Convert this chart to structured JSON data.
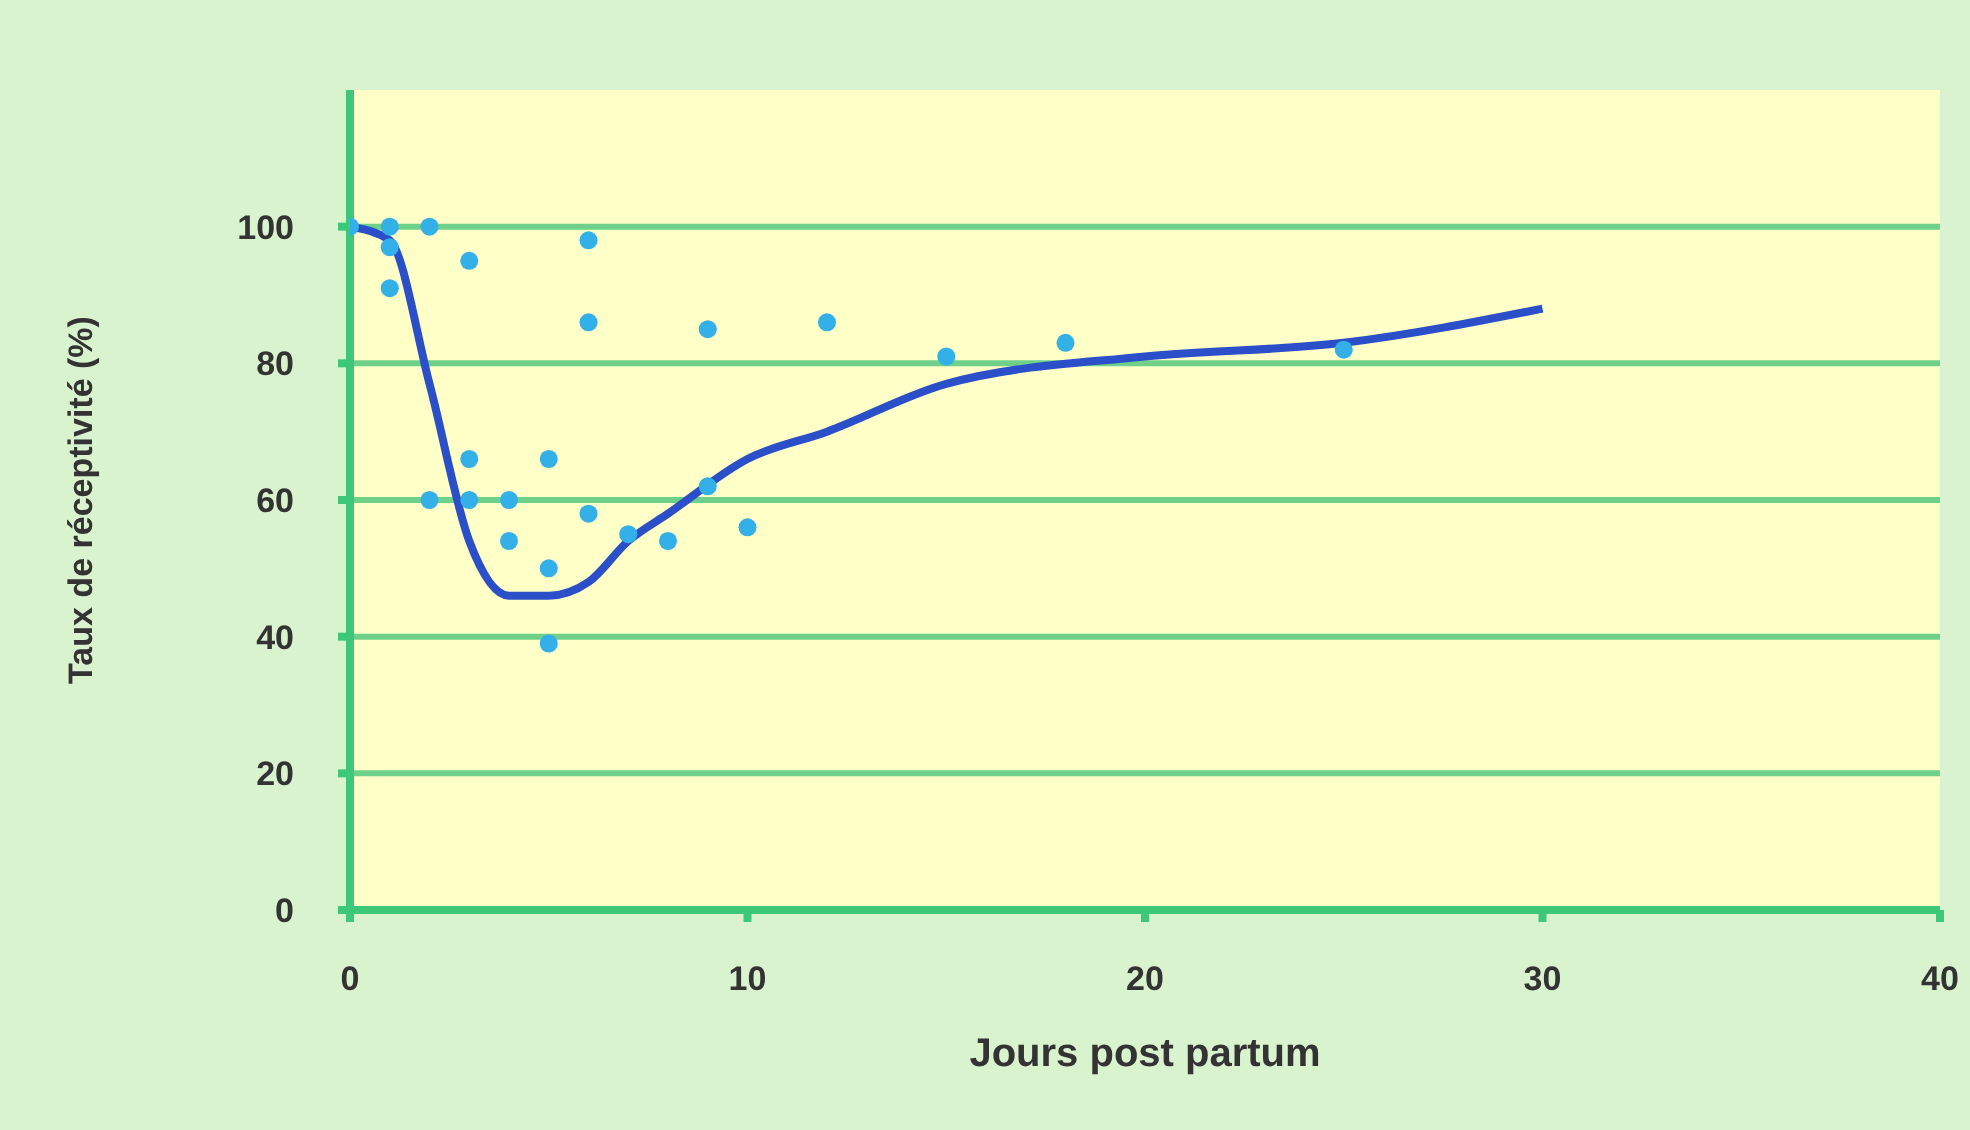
{
  "chart_data": {
    "type": "line",
    "xlabel": "Jours post partum",
    "ylabel": "Taux de réceptivité (%)",
    "xlim": [
      0,
      40
    ],
    "xticks": [
      0,
      10,
      20,
      30,
      40
    ],
    "ylim": [
      0,
      120
    ],
    "yticks": [
      0,
      20,
      40,
      60,
      80,
      100
    ],
    "grid": "y",
    "series": [
      {
        "type": "scatter",
        "color": "#33b0e8",
        "marker": "circle",
        "x": [
          0,
          1,
          1,
          1,
          2,
          3,
          6,
          6,
          9,
          12,
          3,
          5,
          2,
          3,
          4,
          6,
          9,
          4,
          5,
          7,
          8,
          10,
          5,
          15,
          18,
          25
        ],
        "values": [
          100,
          100,
          97,
          91,
          100,
          95,
          98,
          86,
          85,
          86,
          66,
          66,
          60,
          60,
          60,
          58,
          62,
          54,
          50,
          55,
          54,
          56,
          39,
          81,
          83,
          82
        ]
      },
      {
        "color": "#2a4fc8",
        "marker": "none",
        "line_style": "solid",
        "x": [
          0,
          1,
          2,
          3,
          4,
          5,
          6,
          7,
          8,
          10,
          12,
          15,
          20,
          25,
          30
        ],
        "values": [
          100,
          98,
          77,
          54,
          46,
          46,
          48,
          54,
          58,
          66,
          70,
          77,
          81,
          83,
          88
        ]
      }
    ]
  }
}
